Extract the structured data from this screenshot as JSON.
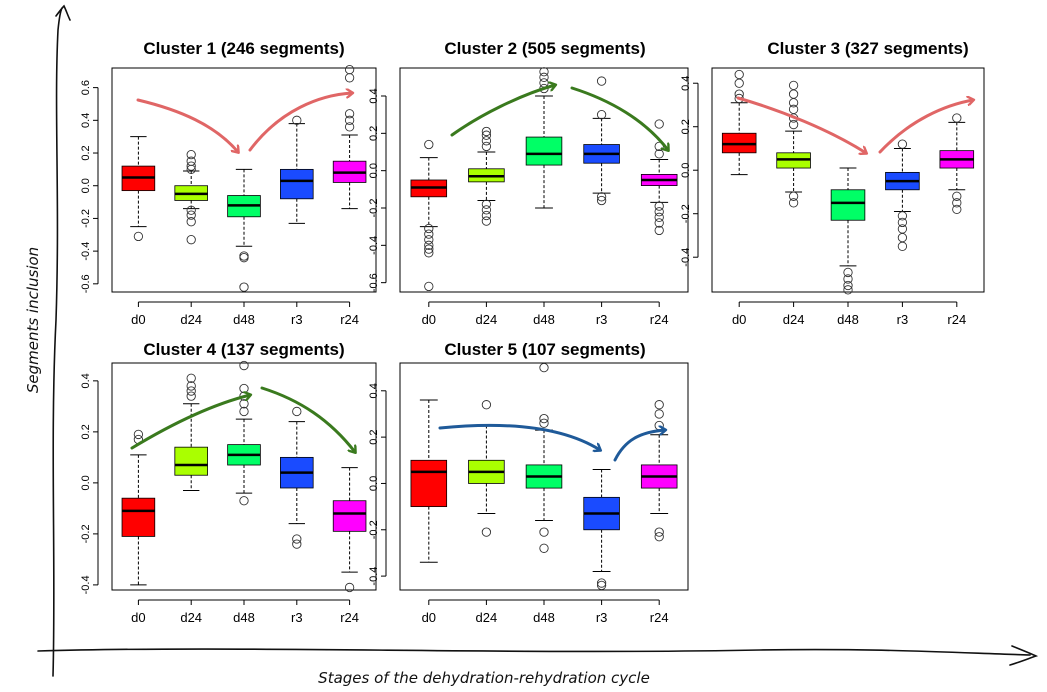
{
  "chart_data": {
    "type": "boxplot",
    "xlabel": "Stages of the dehydration-rehydration cycle",
    "ylabel": "Segments inclusion",
    "categories": [
      "d0",
      "d24",
      "d48",
      "r3",
      "r24"
    ],
    "box_colors": [
      "#ff0000",
      "#aaff00",
      "#00ff66",
      "#1a4bff",
      "#ff00ff"
    ],
    "panels": [
      {
        "title": "Cluster 1 (246 segments)",
        "ylim": [
          -0.65,
          0.72
        ],
        "yticks": [
          -0.6,
          -0.4,
          -0.2,
          0.0,
          0.2,
          0.4,
          0.6
        ],
        "ytick_labels": [
          "-0.6",
          "-0.4",
          "-0.2",
          "0.0",
          "0.2",
          "0.4",
          "0.6"
        ],
        "arrow_color": "#e06666",
        "arrow_trend": [
          "down",
          "up"
        ],
        "boxes": [
          {
            "stage": "d0",
            "lo": -0.25,
            "q1": -0.03,
            "med": 0.05,
            "q3": 0.12,
            "hi": 0.3,
            "out": [
              -0.31
            ]
          },
          {
            "stage": "d24",
            "lo": -0.14,
            "q1": -0.09,
            "med": -0.05,
            "q3": 0.0,
            "hi": 0.09,
            "out": [
              0.1,
              0.12,
              0.15,
              0.19,
              -0.15,
              -0.18,
              -0.22,
              -0.33
            ]
          },
          {
            "stage": "d48",
            "lo": -0.37,
            "q1": -0.19,
            "med": -0.12,
            "q3": -0.06,
            "hi": 0.1,
            "out": [
              -0.43,
              -0.44,
              -0.62
            ]
          },
          {
            "stage": "r3",
            "lo": -0.23,
            "q1": -0.08,
            "med": 0.03,
            "q3": 0.1,
            "hi": 0.38,
            "out": [
              0.4
            ]
          },
          {
            "stage": "r24",
            "lo": -0.14,
            "q1": 0.02,
            "med": 0.08,
            "q3": 0.15,
            "hi": 0.31,
            "out": [
              0.36,
              0.4,
              0.44,
              0.66,
              0.71
            ]
          }
        ]
      },
      {
        "title": "Cluster 2 (505 segments)",
        "ylim": [
          -0.65,
          0.55
        ],
        "yticks": [
          -0.6,
          -0.4,
          -0.2,
          0.0,
          0.2,
          0.4
        ],
        "ytick_labels": [
          "-0.6",
          "-0.4",
          "-0.2",
          "0.0",
          "0.2",
          "0.4"
        ],
        "arrow_color": "#3a7a1e",
        "arrow_trend": [
          "up",
          "down"
        ],
        "boxes": [
          {
            "stage": "d0",
            "lo": -0.3,
            "q1": -0.14,
            "med": -0.09,
            "q3": -0.05,
            "hi": 0.07,
            "out": [
              0.14,
              -0.31,
              -0.34,
              -0.37,
              -0.4,
              -0.42,
              -0.44,
              -0.62
            ]
          },
          {
            "stage": "d24",
            "lo": -0.16,
            "q1": -0.06,
            "med": -0.03,
            "q3": 0.01,
            "hi": 0.1,
            "out": [
              0.13,
              0.16,
              0.19,
              0.21,
              -0.18,
              -0.21,
              -0.24,
              -0.27
            ]
          },
          {
            "stage": "d48",
            "lo": -0.2,
            "q1": 0.03,
            "med": 0.09,
            "q3": 0.18,
            "hi": 0.4,
            "out": [
              0.44,
              0.47,
              0.5,
              0.53
            ]
          },
          {
            "stage": "r3",
            "lo": -0.12,
            "q1": 0.04,
            "med": 0.09,
            "q3": 0.14,
            "hi": 0.28,
            "out": [
              0.3,
              0.48,
              -0.14,
              -0.16
            ]
          },
          {
            "stage": "r24",
            "lo": -0.17,
            "q1": -0.08,
            "med": -0.05,
            "q3": -0.02,
            "hi": 0.06,
            "out": [
              0.09,
              0.13,
              0.25,
              -0.19,
              -0.22,
              -0.25,
              -0.28,
              -0.32
            ]
          }
        ]
      },
      {
        "title": "Cluster 3 (327 segments)",
        "ylim": [
          -0.56,
          0.47
        ],
        "yticks": [
          -0.4,
          -0.2,
          0.0,
          0.2,
          0.4
        ],
        "ytick_labels": [
          "-0.4",
          "-0.2",
          "0.0",
          "0.2",
          "0.4"
        ],
        "arrow_color": "#e06666",
        "arrow_trend": [
          "down",
          "up"
        ],
        "boxes": [
          {
            "stage": "d0",
            "lo": -0.02,
            "q1": 0.08,
            "med": 0.12,
            "q3": 0.17,
            "hi": 0.31,
            "out": [
              0.33,
              0.35,
              0.4,
              0.44
            ]
          },
          {
            "stage": "d24",
            "lo": -0.1,
            "q1": 0.01,
            "med": 0.05,
            "q3": 0.08,
            "hi": 0.18,
            "out": [
              0.21,
              0.24,
              0.28,
              0.31,
              0.35,
              0.39,
              -0.12,
              -0.15
            ]
          },
          {
            "stage": "d48",
            "lo": -0.44,
            "q1": -0.23,
            "med": -0.15,
            "q3": -0.09,
            "hi": 0.01,
            "out": [
              -0.47,
              -0.5,
              -0.53,
              -0.55
            ]
          },
          {
            "stage": "r3",
            "lo": -0.19,
            "q1": -0.09,
            "med": -0.05,
            "q3": -0.01,
            "hi": 0.1,
            "out": [
              0.12,
              -0.21,
              -0.24,
              -0.27,
              -0.31,
              -0.35
            ]
          },
          {
            "stage": "r24",
            "lo": -0.09,
            "q1": 0.01,
            "med": 0.05,
            "q3": 0.09,
            "hi": 0.22,
            "out": [
              0.24,
              -0.12,
              -0.15,
              -0.18
            ]
          }
        ]
      },
      {
        "title": "Cluster 4 (137 segments)",
        "ylim": [
          -0.42,
          0.47
        ],
        "yticks": [
          -0.4,
          -0.2,
          0.0,
          0.2,
          0.4
        ],
        "ytick_labels": [
          "-0.4",
          "-0.2",
          "0.0",
          "0.2",
          "0.4"
        ],
        "arrow_color": "#3a7a1e",
        "arrow_trend": [
          "up",
          "down"
        ],
        "boxes": [
          {
            "stage": "d0",
            "lo": -0.4,
            "q1": -0.21,
            "med": -0.11,
            "q3": -0.06,
            "hi": 0.11,
            "out": [
              0.17,
              0.19
            ]
          },
          {
            "stage": "d24",
            "lo": -0.03,
            "q1": 0.03,
            "med": 0.07,
            "q3": 0.14,
            "hi": 0.31,
            "out": [
              0.34,
              0.36,
              0.38,
              0.41
            ]
          },
          {
            "stage": "d48",
            "lo": -0.04,
            "q1": 0.07,
            "med": 0.11,
            "q3": 0.15,
            "hi": 0.25,
            "out": [
              0.28,
              0.31,
              0.34,
              0.37,
              0.46,
              -0.07
            ]
          },
          {
            "stage": "r3",
            "lo": -0.16,
            "q1": -0.02,
            "med": 0.04,
            "q3": 0.1,
            "hi": 0.24,
            "out": [
              0.28,
              -0.22,
              -0.24
            ]
          },
          {
            "stage": "r24",
            "lo": -0.35,
            "q1": -0.19,
            "med": -0.12,
            "q3": -0.07,
            "hi": 0.06,
            "out": [
              -0.41
            ]
          }
        ]
      },
      {
        "title": "Cluster 5 (107 segments)",
        "ylim": [
          -0.46,
          0.52
        ],
        "yticks": [
          -0.4,
          -0.2,
          0.0,
          0.2,
          0.4
        ],
        "ytick_labels": [
          "-0.4",
          "-0.2",
          "0.0",
          "0.2",
          "0.4"
        ],
        "arrow_color": "#1f5a99",
        "arrow_trend": [
          "flat-down",
          "up"
        ],
        "boxes": [
          {
            "stage": "d0",
            "lo": -0.34,
            "q1": -0.1,
            "med": 0.05,
            "q3": 0.1,
            "hi": 0.36,
            "out": []
          },
          {
            "stage": "d24",
            "lo": -0.13,
            "q1": 0.0,
            "med": 0.05,
            "q3": 0.1,
            "hi": 0.25,
            "out": [
              0.34,
              -0.21
            ]
          },
          {
            "stage": "d48",
            "lo": -0.16,
            "q1": -0.02,
            "med": 0.03,
            "q3": 0.08,
            "hi": 0.23,
            "out": [
              0.26,
              0.28,
              0.5,
              -0.21,
              -0.28
            ]
          },
          {
            "stage": "r3",
            "lo": -0.38,
            "q1": -0.2,
            "med": -0.13,
            "q3": -0.06,
            "hi": 0.06,
            "out": [
              -0.43,
              -0.44
            ]
          },
          {
            "stage": "r24",
            "lo": -0.13,
            "q1": -0.02,
            "med": 0.03,
            "q3": 0.08,
            "hi": 0.21,
            "out": [
              0.25,
              0.3,
              0.34,
              -0.21,
              -0.23
            ]
          }
        ]
      }
    ]
  }
}
